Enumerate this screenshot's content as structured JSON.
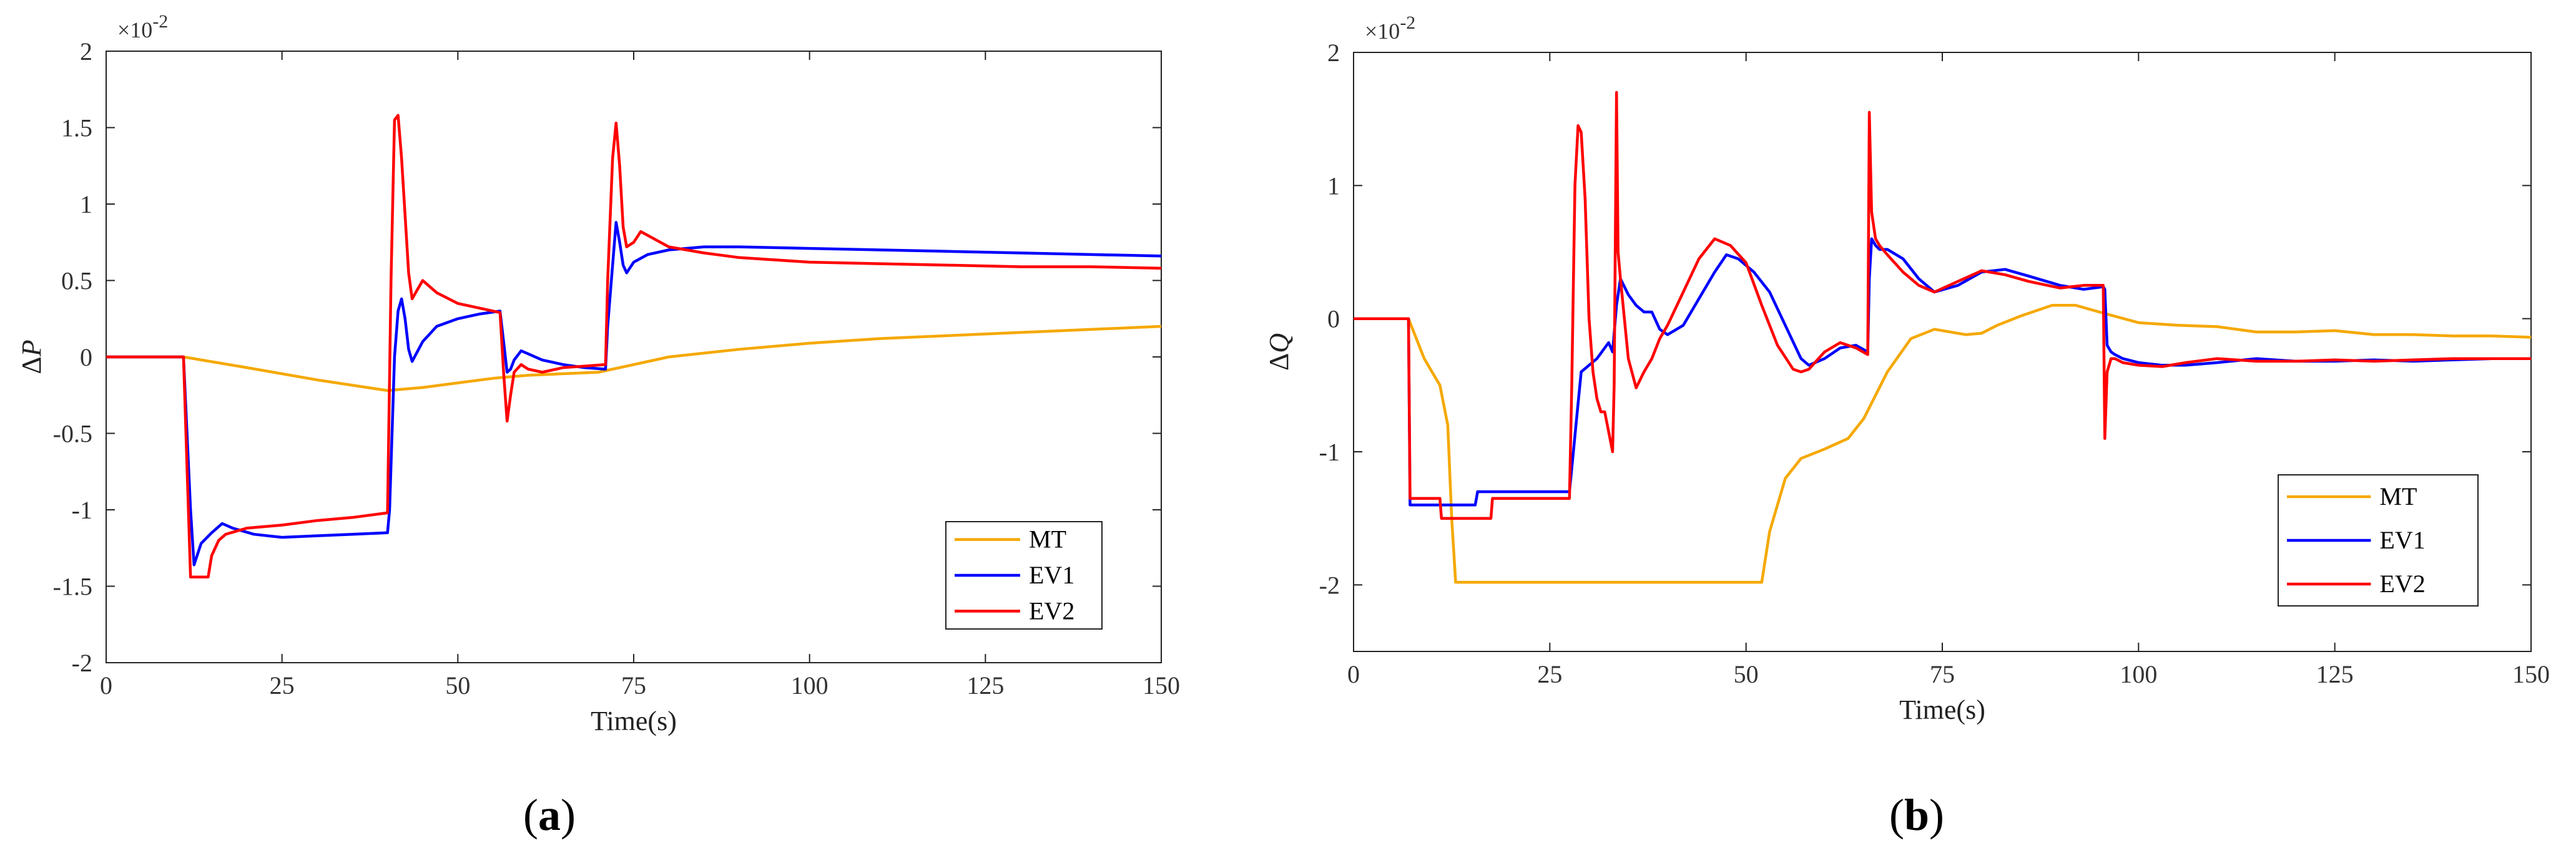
{
  "chart_data": [
    {
      "type": "line",
      "panel_label": [
        "(",
        "a",
        ")"
      ],
      "xlabel": "Time(s)",
      "ylabel": "ΔP",
      "ylabel_italic_part": "P",
      "y_exponent": [
        "×10",
        "-2"
      ],
      "xlim": [
        0,
        150
      ],
      "ylim": [
        -2,
        2
      ],
      "xticks": [
        0,
        25,
        50,
        75,
        100,
        125,
        150
      ],
      "yticks": [
        -2,
        -1.5,
        -1,
        -0.5,
        0,
        0.5,
        1,
        1.5,
        2
      ],
      "ytick_labels": [
        "-2",
        "-1.5",
        "-1",
        "-0.5",
        "0",
        "0.5",
        "1",
        "1.5",
        "2"
      ],
      "grid": false,
      "legend_position": "lower-right",
      "series": [
        {
          "name": "MT",
          "color": "#f5a800",
          "x": [
            0,
            11,
            20,
            30,
            40,
            45,
            50,
            55,
            60,
            65,
            70,
            75,
            80,
            90,
            100,
            110,
            120,
            130,
            140,
            150
          ],
          "y": [
            0,
            0,
            -0.07,
            -0.15,
            -0.22,
            -0.2,
            -0.17,
            -0.14,
            -0.12,
            -0.11,
            -0.1,
            -0.05,
            0,
            0.05,
            0.09,
            0.12,
            0.14,
            0.16,
            0.18,
            0.2
          ]
        },
        {
          "name": "EV1",
          "color": "#0000ff",
          "x": [
            0,
            11,
            12,
            12.5,
            13.5,
            15,
            16.5,
            18,
            21,
            25,
            30,
            35,
            40,
            40.3,
            41,
            41.5,
            42,
            42.5,
            43,
            43.5,
            45,
            47,
            50,
            53,
            56,
            56.5,
            57,
            57.5,
            58,
            59,
            60,
            62,
            65,
            68,
            71,
            71.3,
            72,
            72.5,
            73,
            73.5,
            74,
            75,
            77,
            80,
            85,
            90,
            100,
            110,
            120,
            130,
            140,
            150
          ],
          "y": [
            0,
            0,
            -1,
            -1.36,
            -1.22,
            -1.15,
            -1.09,
            -1.12,
            -1.16,
            -1.18,
            -1.17,
            -1.16,
            -1.15,
            -1.0,
            0,
            0.3,
            0.38,
            0.25,
            0.05,
            -0.03,
            0.1,
            0.2,
            0.25,
            0.28,
            0.3,
            0.1,
            -0.1,
            -0.08,
            -0.02,
            0.04,
            0.02,
            -0.02,
            -0.05,
            -0.07,
            -0.08,
            0.2,
            0.6,
            0.88,
            0.75,
            0.6,
            0.55,
            0.62,
            0.67,
            0.7,
            0.72,
            0.72,
            0.71,
            0.7,
            0.69,
            0.68,
            0.67,
            0.66
          ]
        },
        {
          "name": "EV2",
          "color": "#ff0000",
          "x": [
            0,
            11,
            12,
            14.5,
            15,
            16,
            17,
            20,
            25,
            30,
            35,
            40,
            40.5,
            41,
            41.5,
            42,
            43,
            43.5,
            44,
            45,
            47,
            50,
            53,
            56,
            56.5,
            57,
            57.5,
            58,
            59,
            60,
            62,
            65,
            68,
            71,
            71.3,
            72,
            72.5,
            73,
            73.5,
            74,
            75,
            76,
            78,
            80,
            85,
            90,
            100,
            110,
            120,
            130,
            140,
            150
          ],
          "y": [
            0,
            0,
            -1.44,
            -1.44,
            -1.3,
            -1.2,
            -1.16,
            -1.12,
            -1.1,
            -1.07,
            -1.05,
            -1.02,
            0.5,
            1.55,
            1.58,
            1.3,
            0.55,
            0.38,
            0.42,
            0.5,
            0.42,
            0.35,
            0.32,
            0.29,
            -0.1,
            -0.42,
            -0.25,
            -0.1,
            -0.05,
            -0.08,
            -0.1,
            -0.07,
            -0.06,
            -0.05,
            0.5,
            1.3,
            1.53,
            1.25,
            0.85,
            0.72,
            0.75,
            0.82,
            0.77,
            0.72,
            0.68,
            0.65,
            0.62,
            0.61,
            0.6,
            0.59,
            0.59,
            0.58
          ]
        }
      ]
    },
    {
      "type": "line",
      "panel_label": [
        "(",
        "b",
        ")"
      ],
      "xlabel": "Time(s)",
      "ylabel": "ΔQ",
      "ylabel_italic_part": "Q",
      "y_exponent": [
        "×10",
        "-2"
      ],
      "xlim": [
        0,
        150
      ],
      "ylim": [
        -2.5,
        2
      ],
      "xticks": [
        0,
        25,
        50,
        75,
        100,
        125,
        150
      ],
      "yticks": [
        -2,
        -1,
        0,
        1,
        2
      ],
      "ytick_labels": [
        "-2",
        "-1",
        "0",
        "1",
        "2"
      ],
      "grid": false,
      "legend_position": "lower-right",
      "series": [
        {
          "name": "MT",
          "color": "#f5a800",
          "x": [
            0,
            7,
            8,
            9,
            10,
            11,
            12,
            12.5,
            13,
            52,
            53,
            55,
            57,
            60,
            63,
            65,
            68,
            71,
            74,
            76,
            78,
            80,
            82,
            85,
            89,
            92,
            95,
            100,
            105,
            110,
            115,
            120,
            125,
            130,
            135,
            140,
            145,
            150
          ],
          "y": [
            0,
            0,
            -0.15,
            -0.3,
            -0.4,
            -0.5,
            -0.8,
            -1.5,
            -1.98,
            -1.98,
            -1.6,
            -1.2,
            -1.05,
            -0.98,
            -0.9,
            -0.75,
            -0.4,
            -0.15,
            -0.08,
            -0.1,
            -0.12,
            -0.11,
            -0.05,
            0.02,
            0.1,
            0.1,
            0.05,
            -0.03,
            -0.05,
            -0.06,
            -0.1,
            -0.1,
            -0.09,
            -0.12,
            -0.12,
            -0.13,
            -0.13,
            -0.14
          ]
        },
        {
          "name": "EV1",
          "color": "#0000ff",
          "x": [
            0,
            7,
            7.2,
            15.5,
            15.8,
            27.5,
            28,
            28.5,
            29,
            30,
            31,
            32,
            32.5,
            33,
            33.5,
            34,
            35,
            36,
            37,
            38,
            39,
            40,
            42,
            44,
            46,
            47.5,
            49,
            51,
            53,
            55,
            57,
            58,
            60,
            62,
            64,
            65.5,
            65.7,
            66,
            66.5,
            67,
            68,
            70,
            72,
            74,
            77,
            80,
            83,
            86,
            90,
            93,
            95.5,
            95.7,
            96,
            96.5,
            97,
            98,
            100,
            103,
            106,
            110,
            115,
            120,
            125,
            130,
            135,
            140,
            145,
            150
          ],
          "y": [
            0,
            0,
            -1.4,
            -1.4,
            -1.3,
            -1.3,
            -1.0,
            -0.7,
            -0.4,
            -0.35,
            -0.3,
            -0.22,
            -0.18,
            -0.25,
            0.1,
            0.3,
            0.18,
            0.1,
            0.05,
            0.05,
            -0.08,
            -0.12,
            -0.05,
            0.15,
            0.35,
            0.48,
            0.45,
            0.35,
            0.2,
            -0.05,
            -0.3,
            -0.35,
            -0.3,
            -0.22,
            -0.2,
            -0.25,
            0.3,
            0.6,
            0.55,
            0.52,
            0.52,
            0.45,
            0.3,
            0.2,
            0.25,
            0.35,
            0.37,
            0.32,
            0.25,
            0.22,
            0.24,
            0.22,
            -0.2,
            -0.25,
            -0.27,
            -0.3,
            -0.33,
            -0.35,
            -0.35,
            -0.33,
            -0.3,
            -0.32,
            -0.32,
            -0.31,
            -0.32,
            -0.31,
            -0.3,
            -0.3
          ]
        },
        {
          "name": "EV2",
          "color": "#ff0000",
          "x": [
            0,
            7,
            7.2,
            11,
            11.2,
            17.5,
            17.7,
            27.5,
            27.8,
            28.2,
            28.6,
            29,
            29.5,
            30,
            30.5,
            31,
            31.5,
            32,
            33,
            33.2,
            33.5,
            33.7,
            34,
            35,
            36,
            37,
            38,
            39,
            40,
            42,
            44,
            46,
            48,
            50,
            52,
            54,
            56,
            57,
            58,
            60,
            62,
            64,
            65.5,
            65.7,
            66,
            66.5,
            67,
            68,
            70,
            72,
            74,
            77,
            80,
            83,
            86,
            90,
            93,
            95.5,
            95.7,
            96,
            96.5,
            97,
            98,
            100,
            103,
            106,
            110,
            115,
            120,
            125,
            130,
            135,
            140,
            145,
            150
          ],
          "y": [
            0,
            0,
            -1.35,
            -1.35,
            -1.5,
            -1.5,
            -1.35,
            -1.35,
            -0.5,
            1.0,
            1.45,
            1.4,
            0.9,
            0,
            -0.4,
            -0.6,
            -0.7,
            -0.7,
            -1.0,
            -0.5,
            1.7,
            0.5,
            0.3,
            -0.3,
            -0.52,
            -0.4,
            -0.3,
            -0.15,
            -0.05,
            0.2,
            0.45,
            0.6,
            0.55,
            0.42,
            0.1,
            -0.2,
            -0.38,
            -0.4,
            -0.38,
            -0.25,
            -0.18,
            -0.22,
            -0.27,
            1.55,
            0.8,
            0.6,
            0.55,
            0.48,
            0.35,
            0.25,
            0.2,
            0.28,
            0.36,
            0.33,
            0.28,
            0.23,
            0.25,
            0.25,
            -0.9,
            -0.4,
            -0.3,
            -0.3,
            -0.33,
            -0.35,
            -0.36,
            -0.33,
            -0.3,
            -0.32,
            -0.32,
            -0.31,
            -0.32,
            -0.31,
            -0.3,
            -0.3,
            -0.3
          ]
        }
      ]
    }
  ]
}
